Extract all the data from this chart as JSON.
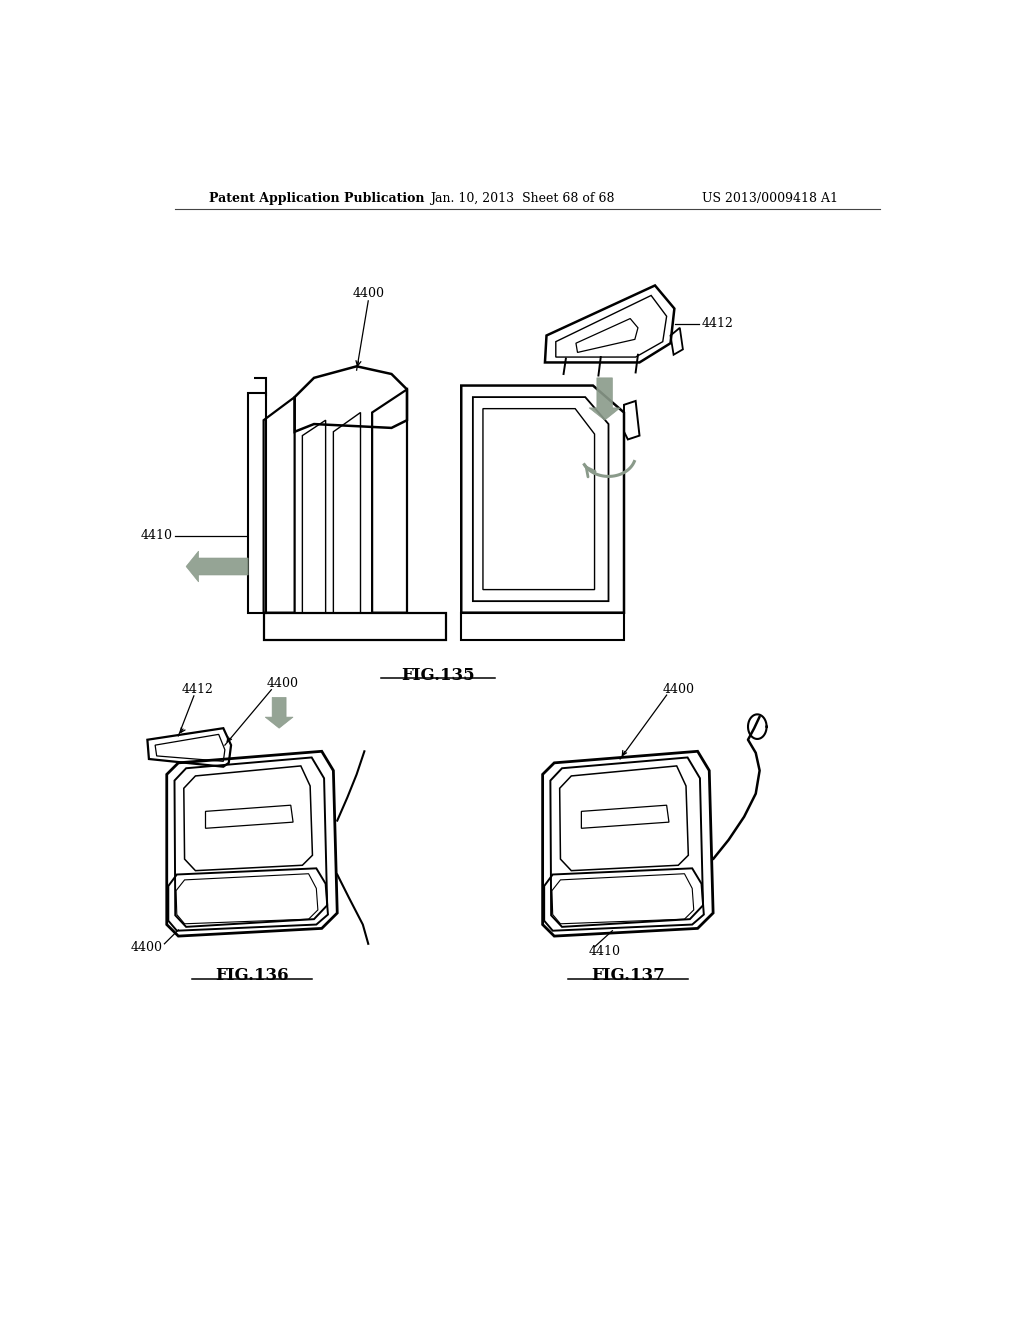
{
  "background_color": "#ffffff",
  "header_left": "Patent Application Publication",
  "header_mid": "Jan. 10, 2013  Sheet 68 of 68",
  "header_right": "US 2013/0009418 A1",
  "fig135_title": "FIG.135",
  "fig136_title": "FIG.136",
  "fig137_title": "FIG.137",
  "ref_4400": "4400",
  "ref_4410": "4410",
  "ref_4412": "4412",
  "line_color": "#000000",
  "gray_color": "#8a9a8a",
  "font_size_header": 9,
  "font_size_ref": 9,
  "font_size_fig": 12
}
